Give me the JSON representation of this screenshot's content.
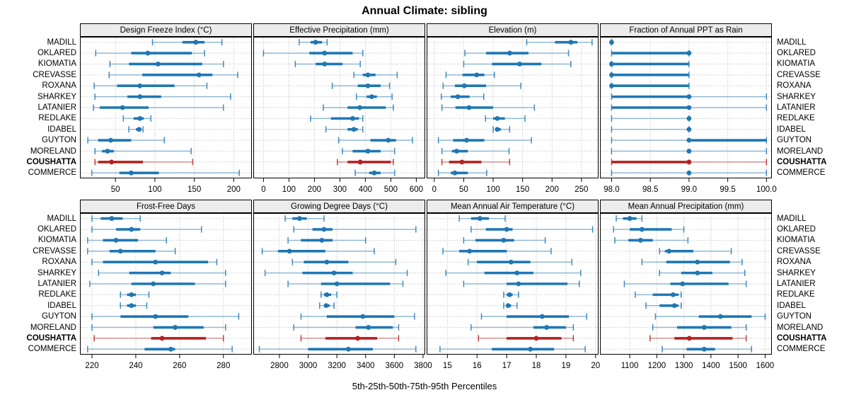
{
  "title": "Annual Climate: sibling",
  "x_axis_title": "5th-25th-50th-75th-95th Percentiles",
  "colors": {
    "series": "#1F77B4",
    "highlight": "#B22222",
    "strip_background": "#ECECEC",
    "grid": "#BDBDBD",
    "panel_border": "#000000",
    "text": "#000000"
  },
  "chart_data": {
    "type": "scatter",
    "subtype": "percentile-dotplot-trellis",
    "title": "Annual Climate: sibling",
    "xlabel": "5th-25th-50th-75th-95th Percentiles",
    "percentiles": [
      5,
      25,
      50,
      75,
      95
    ],
    "legend_position": "none",
    "grid": "dotted",
    "rows_top_to_bottom": [
      "MADILL",
      "OKLARED",
      "KIOMATIA",
      "CREVASSE",
      "ROXANA",
      "SHARKEY",
      "LATANIER",
      "REDLAKE",
      "IDABEL",
      "GUYTON",
      "MORELAND",
      "COUSHATTA",
      "COMMERCE"
    ],
    "highlight_row": "COUSHATTA",
    "panels": [
      {
        "title": "Design Freeze Index (°C)",
        "grid_row": 1,
        "axis_range": [
          5,
          223
        ],
        "ticks": [
          50,
          100,
          150,
          200
        ],
        "tick_labels": [
          "50",
          "100",
          "150",
          "200"
        ],
        "values": [
          [
            97,
            135,
            152,
            163,
            185
          ],
          [
            25,
            70,
            91,
            147,
            163
          ],
          [
            43,
            67,
            104,
            160,
            187
          ],
          [
            42,
            84,
            156,
            173,
            205
          ],
          [
            23,
            52,
            81,
            125,
            166
          ],
          [
            24,
            65,
            81,
            108,
            196
          ],
          [
            22,
            30,
            59,
            92,
            187
          ],
          [
            60,
            73,
            81,
            86,
            95
          ],
          [
            67,
            76,
            80,
            83,
            85
          ],
          [
            15,
            28,
            44,
            70,
            112
          ],
          [
            24,
            33,
            40,
            48,
            146
          ],
          [
            24,
            28,
            45,
            85,
            148
          ],
          [
            20,
            55,
            70,
            105,
            207
          ]
        ]
      },
      {
        "title": "Effective Precipitation (mm)",
        "grid_row": 1,
        "axis_range": [
          -40,
          635
        ],
        "ticks": [
          0,
          100,
          200,
          300,
          400,
          500,
          600
        ],
        "tick_labels": [
          "0",
          "100",
          "200",
          "300",
          "400",
          "500",
          "600"
        ],
        "values": [
          [
            140,
            185,
            205,
            230,
            250
          ],
          [
            0,
            180,
            240,
            350,
            390
          ],
          [
            125,
            205,
            240,
            310,
            380
          ],
          [
            355,
            390,
            410,
            440,
            525
          ],
          [
            270,
            370,
            410,
            460,
            495
          ],
          [
            365,
            405,
            425,
            445,
            505
          ],
          [
            235,
            330,
            378,
            480,
            510
          ],
          [
            185,
            265,
            350,
            375,
            390
          ],
          [
            245,
            330,
            355,
            370,
            390
          ],
          [
            295,
            420,
            490,
            520,
            585
          ],
          [
            310,
            350,
            410,
            460,
            515
          ],
          [
            290,
            330,
            380,
            500,
            510
          ],
          [
            360,
            415,
            435,
            460,
            515
          ]
        ]
      },
      {
        "title": "Elevation (m)",
        "grid_row": 1,
        "axis_range": [
          -13,
          279
        ],
        "ticks": [
          0,
          50,
          100,
          150,
          200,
          250
        ],
        "tick_labels": [
          "0",
          "50",
          "100",
          "150",
          "200",
          "250"
        ],
        "values": [
          [
            157,
            205,
            232,
            243,
            268
          ],
          [
            52,
            88,
            128,
            160,
            228
          ],
          [
            50,
            98,
            145,
            182,
            232
          ],
          [
            20,
            48,
            72,
            85,
            102
          ],
          [
            15,
            35,
            51,
            88,
            147
          ],
          [
            12,
            28,
            40,
            60,
            84
          ],
          [
            13,
            36,
            59,
            100,
            170
          ],
          [
            87,
            100,
            107,
            120,
            154
          ],
          [
            100,
            104,
            107,
            113,
            128
          ],
          [
            7,
            32,
            55,
            85,
            165
          ],
          [
            13,
            30,
            38,
            57,
            127
          ],
          [
            13,
            25,
            47,
            80,
            128
          ],
          [
            7,
            28,
            35,
            57,
            89
          ]
        ]
      },
      {
        "title": "Fraction of Annual PPT as Rain",
        "grid_row": 1,
        "axis_range": [
          97.85,
          100.07
        ],
        "ticks": [
          98.0,
          98.5,
          99.0,
          99.5,
          100.0
        ],
        "tick_labels": [
          "98.0",
          "98.5",
          "99.0",
          "99.5",
          "100.0"
        ],
        "values": [
          [
            98,
            98,
            98,
            98,
            98
          ],
          [
            98,
            98,
            99,
            99,
            99
          ],
          [
            98,
            98,
            98,
            99,
            99
          ],
          [
            98,
            98,
            98,
            99,
            99
          ],
          [
            98,
            98,
            98,
            99,
            99
          ],
          [
            98,
            98,
            99,
            99,
            100
          ],
          [
            98,
            98,
            99,
            99,
            100
          ],
          [
            98,
            99,
            99,
            99,
            99
          ],
          [
            98,
            99,
            99,
            99,
            99
          ],
          [
            98,
            99,
            99,
            100,
            100
          ],
          [
            98,
            99,
            99,
            99,
            100
          ],
          [
            98,
            98,
            99,
            99,
            100
          ],
          [
            98,
            99,
            99,
            99,
            100
          ]
        ]
      },
      {
        "title": "Frost-Free Days",
        "grid_row": 2,
        "axis_range": [
          214.5,
          293
        ],
        "ticks": [
          220,
          240,
          260,
          280
        ],
        "tick_labels": [
          "220",
          "240",
          "260",
          "280"
        ],
        "values": [
          [
            220,
            224,
            229,
            234,
            242
          ],
          [
            220,
            231,
            238,
            242,
            270
          ],
          [
            218,
            225,
            231,
            241,
            254
          ],
          [
            218,
            228,
            233,
            249,
            258
          ],
          [
            220,
            225,
            249,
            273,
            277
          ],
          [
            223,
            237,
            252,
            256,
            281
          ],
          [
            219,
            238,
            248,
            267,
            281
          ],
          [
            233,
            236,
            238,
            240,
            246
          ],
          [
            233,
            236,
            238,
            240,
            245
          ],
          [
            220,
            233,
            249,
            264,
            287
          ],
          [
            220,
            248,
            258,
            271,
            281
          ],
          [
            221,
            247,
            252,
            272,
            280
          ],
          [
            218,
            244,
            256,
            258,
            284
          ]
        ]
      },
      {
        "title": "Growing Degree Days (°C)",
        "grid_row": 2,
        "axis_range": [
          2618,
          3815
        ],
        "ticks": [
          2800,
          3000,
          3200,
          3400,
          3600,
          3800
        ],
        "tick_labels": [
          "2800",
          "3000",
          "3200",
          "3400",
          "3600",
          "3800"
        ],
        "values": [
          [
            2840,
            2890,
            2940,
            2990,
            3110
          ],
          [
            2900,
            3030,
            3110,
            3170,
            3750
          ],
          [
            2860,
            2950,
            3095,
            3170,
            3400
          ],
          [
            2680,
            2790,
            2870,
            3120,
            3460
          ],
          [
            2890,
            2970,
            3130,
            3280,
            3610
          ],
          [
            2700,
            2960,
            3180,
            3310,
            3690
          ],
          [
            2860,
            3090,
            3200,
            3570,
            3660
          ],
          [
            3090,
            3110,
            3130,
            3160,
            3200
          ],
          [
            3080,
            3110,
            3125,
            3150,
            3180
          ],
          [
            2950,
            3130,
            3380,
            3600,
            3740
          ],
          [
            2900,
            3330,
            3420,
            3590,
            3630
          ],
          [
            2950,
            3120,
            3345,
            3480,
            3630
          ],
          [
            2660,
            3000,
            3280,
            3450,
            3750
          ]
        ]
      },
      {
        "title": "Mean Annual Air Temperature (°C)",
        "grid_row": 2,
        "axis_range": [
          14.3,
          20.1
        ],
        "ticks": [
          15,
          16,
          17,
          18,
          19,
          20
        ],
        "tick_labels": [
          "15",
          "16",
          "17",
          "18",
          "19",
          "20"
        ],
        "values": [
          [
            15.4,
            15.8,
            16.1,
            16.4,
            16.95
          ],
          [
            15.8,
            16.3,
            17.0,
            17.2,
            19.9
          ],
          [
            15.55,
            15.95,
            16.9,
            17.25,
            18.3
          ],
          [
            14.85,
            15.4,
            15.75,
            17.0,
            18.5
          ],
          [
            15.7,
            16.0,
            17.15,
            17.8,
            19.2
          ],
          [
            14.95,
            16.25,
            17.35,
            17.9,
            19.5
          ],
          [
            15.55,
            17.0,
            17.4,
            19.05,
            19.45
          ],
          [
            16.9,
            17.0,
            17.1,
            17.2,
            17.4
          ],
          [
            16.9,
            17.0,
            17.05,
            17.15,
            17.35
          ],
          [
            16.15,
            17.0,
            18.2,
            19.1,
            19.7
          ],
          [
            15.8,
            17.9,
            18.35,
            19.0,
            19.25
          ],
          [
            16.05,
            17.0,
            18.0,
            18.85,
            19.25
          ],
          [
            14.75,
            16.5,
            17.8,
            18.6,
            19.65
          ]
        ]
      },
      {
        "title": "Mean Annual Precipitation (mm)",
        "grid_row": 2,
        "axis_range": [
          990,
          1625
        ],
        "ticks": [
          1100,
          1200,
          1300,
          1400,
          1500,
          1600
        ],
        "tick_labels": [
          "1100",
          "1200",
          "1300",
          "1400",
          "1500",
          "1600"
        ],
        "values": [
          [
            1050,
            1075,
            1100,
            1125,
            1145
          ],
          [
            1040,
            1100,
            1145,
            1255,
            1300
          ],
          [
            1045,
            1095,
            1140,
            1185,
            1315
          ],
          [
            1210,
            1230,
            1245,
            1335,
            1475
          ],
          [
            1145,
            1235,
            1350,
            1470,
            1515
          ],
          [
            1210,
            1290,
            1350,
            1405,
            1525
          ],
          [
            1080,
            1250,
            1295,
            1465,
            1530
          ],
          [
            1120,
            1185,
            1260,
            1280,
            1290
          ],
          [
            1160,
            1210,
            1265,
            1280,
            1290
          ],
          [
            1195,
            1355,
            1435,
            1550,
            1600
          ],
          [
            1185,
            1275,
            1375,
            1475,
            1530
          ],
          [
            1175,
            1265,
            1320,
            1480,
            1530
          ],
          [
            1220,
            1310,
            1375,
            1415,
            1550
          ]
        ]
      }
    ]
  }
}
